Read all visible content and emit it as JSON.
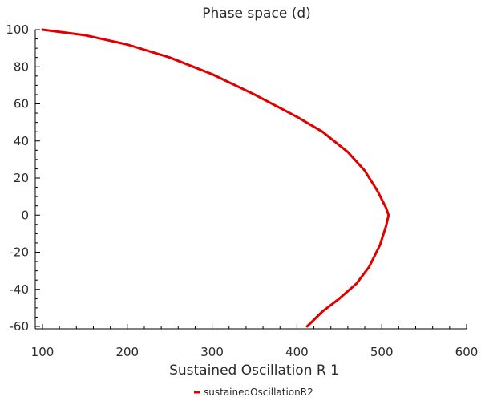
{
  "chart_data": {
    "type": "line",
    "title": "Phase space (d)",
    "xlabel": "Sustained Oscillation R 1",
    "ylabel": "",
    "xlim": [
      100,
      600
    ],
    "ylim": [
      -60,
      100
    ],
    "x_ticks": [
      100,
      200,
      300,
      400,
      500,
      600
    ],
    "y_ticks": [
      -60,
      -40,
      -20,
      0,
      20,
      40,
      60,
      80,
      100
    ],
    "grid": false,
    "legend_position": "bottom-center",
    "series": [
      {
        "name": "sustainedOscillationR2",
        "color": "#e00000",
        "points": [
          [
            100,
            100
          ],
          [
            150,
            97
          ],
          [
            200,
            92
          ],
          [
            250,
            85
          ],
          [
            300,
            76
          ],
          [
            350,
            65
          ],
          [
            400,
            53
          ],
          [
            430,
            45
          ],
          [
            460,
            34
          ],
          [
            480,
            24
          ],
          [
            495,
            13
          ],
          [
            505,
            4
          ],
          [
            508,
            0
          ],
          [
            505,
            -6
          ],
          [
            498,
            -16
          ],
          [
            485,
            -28
          ],
          [
            470,
            -37
          ],
          [
            450,
            -45
          ],
          [
            430,
            -52
          ],
          [
            412,
            -60
          ]
        ]
      }
    ]
  }
}
